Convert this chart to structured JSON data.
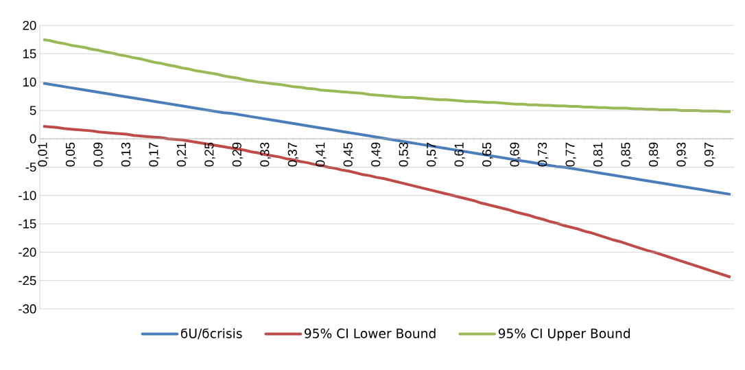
{
  "chart_data": {
    "type": "line",
    "categories": [
      "0,01",
      null,
      null,
      null,
      "0,05",
      null,
      null,
      null,
      "0,09",
      null,
      null,
      null,
      "0,13",
      null,
      null,
      null,
      "0,17",
      null,
      null,
      null,
      "0,21",
      null,
      null,
      null,
      "0,25",
      null,
      null,
      null,
      "0,29",
      null,
      null,
      null,
      "0,33",
      null,
      null,
      null,
      "0,37",
      null,
      null,
      null,
      "0,41",
      null,
      null,
      null,
      "0,45",
      null,
      null,
      null,
      "0,49",
      null,
      null,
      null,
      "0,53",
      null,
      null,
      null,
      "0,57",
      null,
      null,
      null,
      "0,61",
      null,
      null,
      null,
      "0,65",
      null,
      null,
      null,
      "0,69",
      null,
      null,
      null,
      "0,73",
      null,
      null,
      null,
      "0,77",
      null,
      null,
      null,
      "0,81",
      null,
      null,
      null,
      "0,85",
      null,
      null,
      null,
      "0,89",
      null,
      null,
      null,
      "0,93",
      null,
      null,
      null,
      "0,97",
      null,
      null,
      null
    ],
    "series": [
      {
        "name": "ϭU/ϭcrisis",
        "color": "#4a7ebb",
        "values": [
          9.8,
          9.6,
          9.4,
          9.2,
          9.0,
          8.8,
          8.6,
          8.4,
          8.2,
          8.0,
          7.8,
          7.6,
          7.4,
          7.2,
          7.0,
          6.8,
          6.6,
          6.4,
          6.2,
          6.0,
          5.8,
          5.6,
          5.4,
          5.2,
          5.0,
          4.8,
          4.6,
          4.5,
          4.3,
          4.1,
          3.9,
          3.7,
          3.5,
          3.3,
          3.1,
          2.9,
          2.7,
          2.5,
          2.3,
          2.1,
          1.9,
          1.7,
          1.5,
          1.3,
          1.1,
          0.9,
          0.7,
          0.5,
          0.3,
          0.1,
          -0.1,
          -0.3,
          -0.5,
          -0.7,
          -0.9,
          -1.1,
          -1.3,
          -1.5,
          -1.7,
          -1.9,
          -2.1,
          -2.3,
          -2.5,
          -2.7,
          -2.9,
          -3.1,
          -3.3,
          -3.5,
          -3.7,
          -3.9,
          -4.1,
          -4.3,
          -4.5,
          -4.7,
          -4.9,
          -5.0,
          -5.2,
          -5.4,
          -5.6,
          -5.8,
          -6.0,
          -6.2,
          -6.4,
          -6.6,
          -6.8,
          -7.0,
          -7.2,
          -7.4,
          -7.6,
          -7.8,
          -8.0,
          -8.2,
          -8.4,
          -8.6,
          -8.8,
          -9.0,
          -9.2,
          -9.4,
          -9.6,
          -9.8
        ]
      },
      {
        "name": "95% CI Lower Bound",
        "color": "#be4b48",
        "values": [
          2.2,
          2.1,
          2.0,
          1.8,
          1.7,
          1.6,
          1.5,
          1.4,
          1.2,
          1.1,
          1.0,
          0.9,
          0.8,
          0.6,
          0.5,
          0.4,
          0.3,
          0.2,
          0.0,
          -0.1,
          -0.2,
          -0.4,
          -0.6,
          -0.8,
          -1.0,
          -1.2,
          -1.4,
          -1.6,
          -1.8,
          -2.0,
          -2.3,
          -2.5,
          -2.8,
          -3.0,
          -3.2,
          -3.5,
          -3.7,
          -4.0,
          -4.2,
          -4.5,
          -4.7,
          -5.0,
          -5.2,
          -5.5,
          -5.7,
          -6.0,
          -6.3,
          -6.5,
          -6.8,
          -7.0,
          -7.3,
          -7.6,
          -7.9,
          -8.2,
          -8.5,
          -8.8,
          -9.1,
          -9.4,
          -9.7,
          -10.0,
          -10.3,
          -10.6,
          -10.9,
          -11.3,
          -11.6,
          -11.9,
          -12.2,
          -12.5,
          -12.9,
          -13.2,
          -13.5,
          -13.9,
          -14.2,
          -14.6,
          -14.9,
          -15.3,
          -15.6,
          -15.9,
          -16.3,
          -16.6,
          -17.0,
          -17.4,
          -17.8,
          -18.1,
          -18.5,
          -18.9,
          -19.3,
          -19.7,
          -20.0,
          -20.4,
          -20.8,
          -21.2,
          -21.6,
          -22.0,
          -22.4,
          -22.8,
          -23.2,
          -23.6,
          -24.0,
          -24.4
        ]
      },
      {
        "name": "95% CI Upper Bound",
        "color": "#98b954",
        "values": [
          17.5,
          17.3,
          17.0,
          16.8,
          16.5,
          16.3,
          16.1,
          15.8,
          15.6,
          15.3,
          15.1,
          14.8,
          14.6,
          14.3,
          14.1,
          13.8,
          13.5,
          13.3,
          13.0,
          12.8,
          12.5,
          12.3,
          12.0,
          11.8,
          11.6,
          11.4,
          11.1,
          10.9,
          10.7,
          10.4,
          10.2,
          10.0,
          9.9,
          9.7,
          9.6,
          9.4,
          9.2,
          9.1,
          8.9,
          8.8,
          8.6,
          8.5,
          8.4,
          8.3,
          8.2,
          8.1,
          8.0,
          7.8,
          7.7,
          7.6,
          7.5,
          7.4,
          7.3,
          7.3,
          7.2,
          7.1,
          7.0,
          6.9,
          6.9,
          6.8,
          6.7,
          6.6,
          6.6,
          6.5,
          6.4,
          6.4,
          6.3,
          6.2,
          6.1,
          6.1,
          6.0,
          6.0,
          5.9,
          5.9,
          5.8,
          5.8,
          5.7,
          5.7,
          5.6,
          5.6,
          5.5,
          5.5,
          5.4,
          5.4,
          5.4,
          5.3,
          5.3,
          5.2,
          5.2,
          5.1,
          5.1,
          5.1,
          5.0,
          5.0,
          5.0,
          4.9,
          4.9,
          4.9,
          4.8,
          4.8
        ]
      }
    ],
    "ylim": [
      -30,
      20
    ],
    "yticks": [
      -30,
      -25,
      -20,
      -15,
      -10,
      -5,
      0,
      5,
      10,
      15,
      20
    ],
    "grid": "y",
    "legend": "bottom",
    "marker": "none",
    "line_style": "solid"
  }
}
